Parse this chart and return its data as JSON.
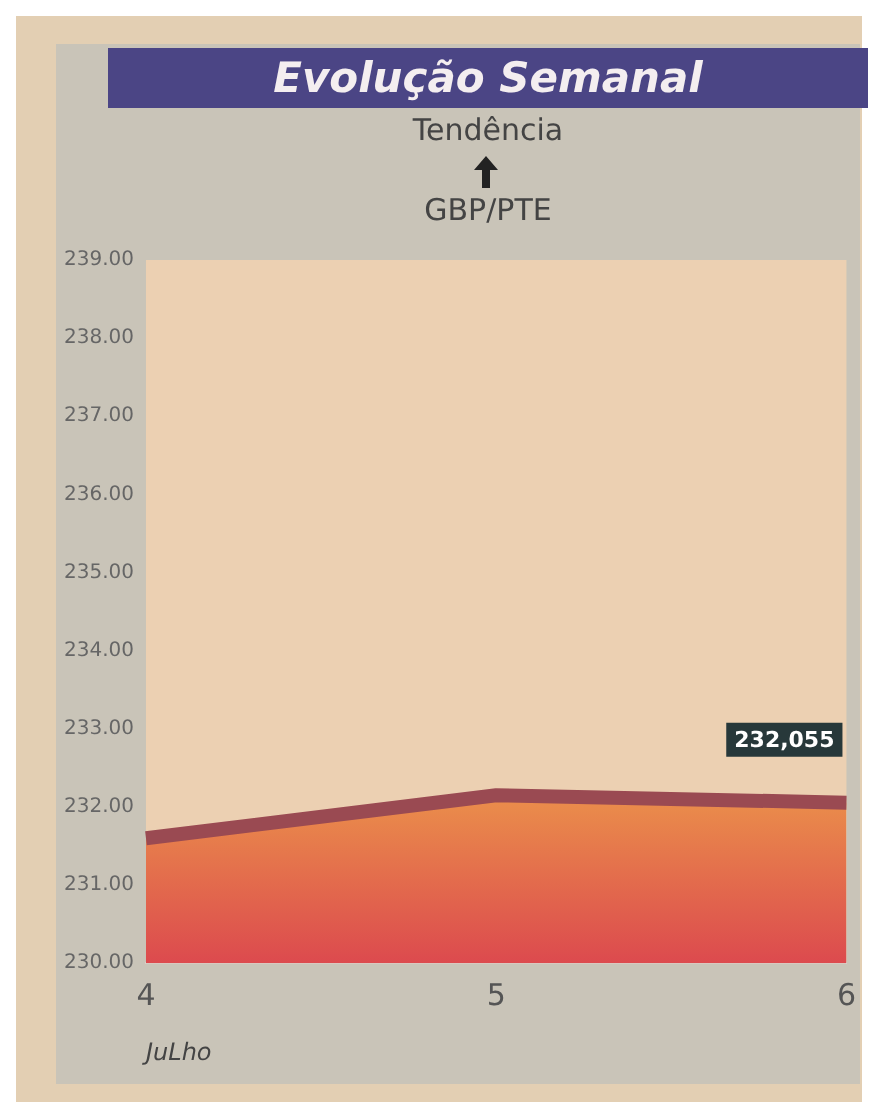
{
  "chart_data": {
    "type": "area",
    "title": "Evolução Semanal",
    "subtitle": "Tendência",
    "xlabel": "JuLho",
    "annotations": [
      "GBP/PTE",
      {
        "text": "232,055",
        "x": "6",
        "y": 232.055
      }
    ],
    "categories": [
      "4",
      "5",
      "6"
    ],
    "series": [
      {
        "color": "#9a4a52",
        "values": [
          231.6,
          232.15,
          232.055
        ]
      }
    ],
    "ylim": [
      230,
      239
    ],
    "yticks": [
      {
        "value": 230,
        "label": "230.00"
      },
      {
        "value": 231,
        "label": "231.00"
      },
      {
        "value": 232,
        "label": "232.00"
      },
      {
        "value": 233,
        "label": "233.00"
      },
      {
        "value": 234,
        "label": "234.00"
      },
      {
        "value": 235,
        "label": "235.00"
      },
      {
        "value": 236,
        "label": "236.00"
      },
      {
        "value": 237,
        "label": "237.00"
      },
      {
        "value": 238,
        "label": "238.00"
      },
      {
        "value": 239,
        "label": "239.00"
      }
    ],
    "grid": false,
    "legend": false
  }
}
